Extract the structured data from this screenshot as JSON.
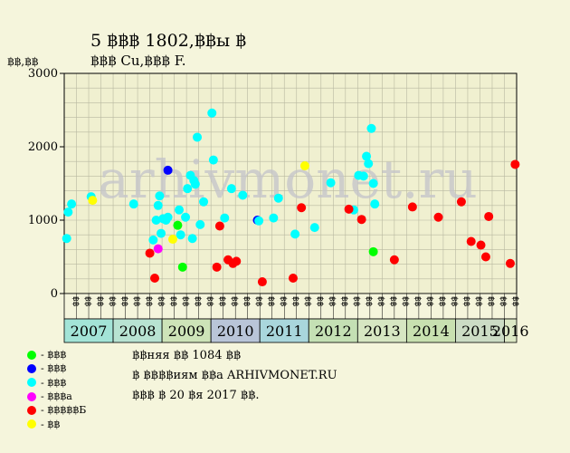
{
  "title_line1": "5 ฿฿฿ 1802,฿฿ы ฿",
  "title_line2": "฿฿฿ Cu,฿฿฿ F.",
  "watermark": "arhivmonet.ru",
  "legend": [
    {
      "label": "- ฿฿฿",
      "color": "#00ff00"
    },
    {
      "label": "- ฿฿฿",
      "color": "#0000ff"
    },
    {
      "label": "- ฿฿฿",
      "color": "#00ffff"
    },
    {
      "label": "- ฿฿฿а",
      "color": "#ff00ff"
    },
    {
      "label": "- ฿฿฿฿฿Б",
      "color": "#ff0000"
    },
    {
      "label": "- ฿฿",
      "color": "#ffff00"
    }
  ],
  "notes": [
    "฿฿няя ฿฿ 1084 ฿฿",
    "฿ ฿฿฿฿иям ฿฿а ARHIVMONET.RU",
    "฿฿฿ ฿ 20 ฿я 2017 ฿฿."
  ],
  "chart_data": {
    "type": "scatter",
    "title": "5 ฿฿฿ 1802,฿฿ы ฿",
    "subtitle": "฿฿฿ Cu,฿฿฿ F.",
    "ylabel": "฿฿,฿฿",
    "ylim": [
      0,
      3000
    ],
    "yticks": [
      0,
      1000,
      2000,
      3000
    ],
    "xlim": [
      2007.0,
      2016.25
    ],
    "years": [
      "2007",
      "2008",
      "2009",
      "2010",
      "2011",
      "2012",
      "2013",
      "2014",
      "2015",
      "2016"
    ],
    "year_colors": [
      "#a3e4d7",
      "#b8e3d2",
      "#cde3b8",
      "#b9c5d8",
      "#a9d6dc",
      "#c4e0b4",
      "#d6e6c2",
      "#c8e0b0",
      "#ccdcc5",
      "#dce8c5"
    ],
    "month_labels": [
      "฿฿",
      "฿฿",
      "฿฿",
      "฿฿",
      "฿฿",
      "฿฿",
      "฿฿",
      "฿฿",
      "฿฿",
      "฿฿",
      "฿฿",
      "฿฿",
      "฿฿",
      "฿฿",
      "฿฿",
      "฿฿",
      "฿฿",
      "฿฿",
      "฿฿",
      "฿฿",
      "฿฿",
      "฿฿",
      "฿฿",
      "฿฿",
      "฿฿",
      "฿฿",
      "฿฿",
      "฿฿",
      "฿฿",
      "฿฿",
      "฿฿",
      "฿฿",
      "฿฿",
      "฿฿",
      "฿฿",
      "฿฿",
      "฿฿"
    ],
    "grid": true,
    "series": [
      {
        "name": "฿฿฿",
        "color": "#00ff00",
        "points": [
          [
            2009.32,
            930
          ],
          [
            2009.42,
            360
          ],
          [
            2013.32,
            570
          ]
        ]
      },
      {
        "name": "฿฿฿",
        "color": "#0000ff",
        "points": [
          [
            2009.12,
            1680
          ],
          [
            2010.95,
            1000
          ]
        ]
      },
      {
        "name": "฿฿฿",
        "color": "#00ffff",
        "points": [
          [
            2007.05,
            750
          ],
          [
            2007.08,
            1110
          ],
          [
            2007.15,
            1220
          ],
          [
            2007.55,
            1320
          ],
          [
            2008.42,
            1220
          ],
          [
            2008.82,
            730
          ],
          [
            2008.88,
            1000
          ],
          [
            2008.92,
            1200
          ],
          [
            2008.95,
            1330
          ],
          [
            2008.98,
            820
          ],
          [
            2009.02,
            1020
          ],
          [
            2009.08,
            1000
          ],
          [
            2009.12,
            1040
          ],
          [
            2009.35,
            1140
          ],
          [
            2009.38,
            800
          ],
          [
            2009.48,
            1040
          ],
          [
            2009.52,
            1430
          ],
          [
            2009.58,
            1610
          ],
          [
            2009.62,
            750
          ],
          [
            2009.65,
            1540
          ],
          [
            2009.68,
            1490
          ],
          [
            2009.72,
            2130
          ],
          [
            2009.78,
            940
          ],
          [
            2009.85,
            1250
          ],
          [
            2010.02,
            2460
          ],
          [
            2010.05,
            1820
          ],
          [
            2010.28,
            1030
          ],
          [
            2010.42,
            1430
          ],
          [
            2010.65,
            1340
          ],
          [
            2010.98,
            990
          ],
          [
            2011.28,
            1030
          ],
          [
            2011.38,
            1300
          ],
          [
            2011.72,
            810
          ],
          [
            2012.12,
            900
          ],
          [
            2012.45,
            1510
          ],
          [
            2012.92,
            1140
          ],
          [
            2013.02,
            1610
          ],
          [
            2013.12,
            1600
          ],
          [
            2013.18,
            1870
          ],
          [
            2013.22,
            1770
          ],
          [
            2013.28,
            2250
          ],
          [
            2013.32,
            1500
          ],
          [
            2013.35,
            1220
          ]
        ]
      },
      {
        "name": "฿฿฿а",
        "color": "#ff00ff",
        "points": [
          [
            2008.92,
            610
          ]
        ]
      },
      {
        "name": "฿฿฿฿฿Б",
        "color": "#ff0000",
        "points": [
          [
            2008.75,
            550
          ],
          [
            2008.85,
            210
          ],
          [
            2010.12,
            360
          ],
          [
            2010.18,
            920
          ],
          [
            2010.35,
            460
          ],
          [
            2010.45,
            410
          ],
          [
            2010.52,
            440
          ],
          [
            2011.05,
            160
          ],
          [
            2011.68,
            210
          ],
          [
            2011.85,
            1170
          ],
          [
            2012.82,
            1150
          ],
          [
            2013.08,
            1010
          ],
          [
            2013.75,
            460
          ],
          [
            2014.12,
            1180
          ],
          [
            2014.65,
            1040
          ],
          [
            2015.12,
            1250
          ],
          [
            2015.32,
            710
          ],
          [
            2015.52,
            660
          ],
          [
            2015.62,
            500
          ],
          [
            2015.68,
            1050
          ],
          [
            2016.12,
            410
          ],
          [
            2016.22,
            1760
          ]
        ]
      },
      {
        "name": "฿฿",
        "color": "#ffff00",
        "points": [
          [
            2007.58,
            1270
          ],
          [
            2009.22,
            740
          ],
          [
            2011.92,
            1740
          ]
        ]
      }
    ]
  }
}
